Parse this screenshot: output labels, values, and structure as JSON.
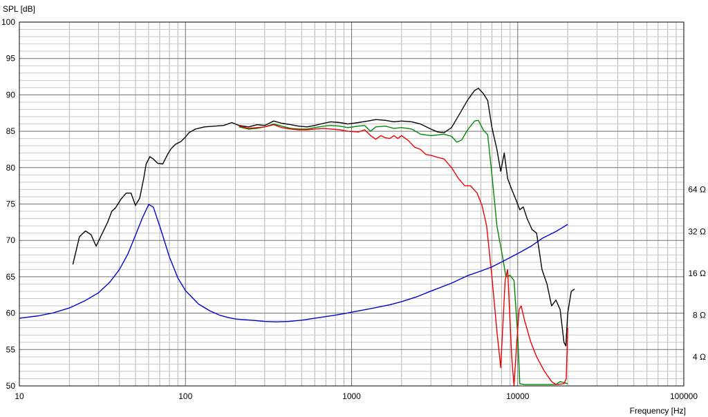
{
  "chart_data": {
    "type": "line",
    "ylabel": "SPL [dB]",
    "xlabel": "Frequency [Hz]",
    "x_scale": "log",
    "xlim": [
      10,
      100000
    ],
    "ylim": [
      50,
      100
    ],
    "grid": true,
    "x_ticks": [
      10,
      100,
      1000,
      10000,
      100000
    ],
    "x_tick_labels": [
      "10",
      "100",
      "1000",
      "10000",
      "100000"
    ],
    "y_ticks": [
      50,
      55,
      60,
      65,
      70,
      75,
      80,
      85,
      90,
      95,
      100
    ],
    "y2_scale": "log",
    "y2_unit": "Ω",
    "y2_ticks": [
      4,
      8,
      16,
      32,
      64
    ],
    "y2_tick_labels": [
      "4 Ω",
      "8 Ω",
      "16 Ω",
      "32 Ω",
      "64 Ω"
    ],
    "series": [
      {
        "color": "#000000",
        "axis": "left",
        "points": [
          [
            21,
            66.7
          ],
          [
            23,
            70.5
          ],
          [
            25,
            71.3
          ],
          [
            27,
            70.8
          ],
          [
            29,
            69.2
          ],
          [
            31,
            70.6
          ],
          [
            34,
            72.5
          ],
          [
            36,
            74.0
          ],
          [
            38,
            74.5
          ],
          [
            41,
            75.7
          ],
          [
            44,
            76.5
          ],
          [
            47,
            76.5
          ],
          [
            50,
            74.8
          ],
          [
            53,
            75.8
          ],
          [
            56,
            78.5
          ],
          [
            58,
            80.5
          ],
          [
            61,
            81.5
          ],
          [
            64,
            81.2
          ],
          [
            68,
            80.6
          ],
          [
            73,
            80.5
          ],
          [
            78,
            81.8
          ],
          [
            82,
            82.6
          ],
          [
            87,
            83.2
          ],
          [
            94,
            83.6
          ],
          [
            100,
            84.2
          ],
          [
            105,
            84.8
          ],
          [
            115,
            85.3
          ],
          [
            130,
            85.6
          ],
          [
            150,
            85.7
          ],
          [
            170,
            85.8
          ],
          [
            190,
            86.2
          ],
          [
            210,
            85.8
          ],
          [
            240,
            85.6
          ],
          [
            270,
            85.9
          ],
          [
            300,
            85.8
          ],
          [
            340,
            86.4
          ],
          [
            380,
            86.1
          ],
          [
            430,
            85.9
          ],
          [
            480,
            85.7
          ],
          [
            540,
            85.6
          ],
          [
            600,
            85.8
          ],
          [
            680,
            86.1
          ],
          [
            750,
            86.3
          ],
          [
            850,
            86.2
          ],
          [
            950,
            86.0
          ],
          [
            1100,
            86.2
          ],
          [
            1250,
            86.4
          ],
          [
            1400,
            86.6
          ],
          [
            1600,
            86.5
          ],
          [
            1800,
            86.3
          ],
          [
            2000,
            86.4
          ],
          [
            2300,
            86.3
          ],
          [
            2600,
            86.0
          ],
          [
            3000,
            85.3
          ],
          [
            3300,
            84.9
          ],
          [
            3600,
            84.8
          ],
          [
            4000,
            85.5
          ],
          [
            4500,
            87.5
          ],
          [
            5000,
            89.3
          ],
          [
            5500,
            90.6
          ],
          [
            5800,
            90.9
          ],
          [
            6200,
            90.2
          ],
          [
            6600,
            89.2
          ],
          [
            7000,
            85.5
          ],
          [
            7500,
            82.5
          ],
          [
            7900,
            79.5
          ],
          [
            8300,
            82.0
          ],
          [
            8700,
            78.5
          ],
          [
            9200,
            77.0
          ],
          [
            9800,
            75.5
          ],
          [
            10300,
            74.2
          ],
          [
            10800,
            74.6
          ],
          [
            11400,
            73.0
          ],
          [
            12200,
            71.5
          ],
          [
            13000,
            71.0
          ],
          [
            14000,
            66.0
          ],
          [
            15000,
            64.0
          ],
          [
            16000,
            61.0
          ],
          [
            17000,
            61.8
          ],
          [
            18000,
            60.5
          ],
          [
            19000,
            56.0
          ],
          [
            19500,
            55.5
          ],
          [
            20000,
            60.0
          ],
          [
            21000,
            63.0
          ],
          [
            22000,
            63.3
          ]
        ]
      },
      {
        "color": "#008800",
        "axis": "left",
        "points": [
          [
            210,
            85.6
          ],
          [
            240,
            85.3
          ],
          [
            270,
            85.4
          ],
          [
            300,
            85.6
          ],
          [
            340,
            86.0
          ],
          [
            380,
            85.7
          ],
          [
            430,
            85.4
          ],
          [
            480,
            85.3
          ],
          [
            540,
            85.3
          ],
          [
            600,
            85.5
          ],
          [
            680,
            85.7
          ],
          [
            750,
            85.8
          ],
          [
            850,
            85.7
          ],
          [
            950,
            85.5
          ],
          [
            1100,
            85.7
          ],
          [
            1200,
            85.8
          ],
          [
            1300,
            85.0
          ],
          [
            1400,
            85.6
          ],
          [
            1600,
            85.7
          ],
          [
            1800,
            85.4
          ],
          [
            2000,
            85.5
          ],
          [
            2300,
            85.3
          ],
          [
            2600,
            84.6
          ],
          [
            3000,
            84.4
          ],
          [
            3300,
            84.5
          ],
          [
            3600,
            84.6
          ],
          [
            4000,
            84.3
          ],
          [
            4300,
            83.5
          ],
          [
            4600,
            83.8
          ],
          [
            5000,
            85.2
          ],
          [
            5500,
            86.4
          ],
          [
            5800,
            86.5
          ],
          [
            6200,
            85.2
          ],
          [
            6600,
            84.5
          ],
          [
            7000,
            79.0
          ],
          [
            7500,
            72.0
          ],
          [
            8000,
            68.5
          ],
          [
            8500,
            65.0
          ],
          [
            9000,
            65.2
          ],
          [
            9500,
            64.5
          ],
          [
            10000,
            57.0
          ],
          [
            10300,
            50.3
          ],
          [
            11000,
            50.2
          ],
          [
            13000,
            50.2
          ],
          [
            17000,
            50.2
          ],
          [
            18000,
            50.6
          ],
          [
            20000,
            50.3
          ]
        ]
      },
      {
        "color": "#ee0000",
        "axis": "left",
        "points": [
          [
            210,
            85.7
          ],
          [
            240,
            85.4
          ],
          [
            270,
            85.5
          ],
          [
            300,
            85.6
          ],
          [
            340,
            85.9
          ],
          [
            380,
            85.5
          ],
          [
            430,
            85.3
          ],
          [
            480,
            85.2
          ],
          [
            540,
            85.2
          ],
          [
            600,
            85.3
          ],
          [
            680,
            85.4
          ],
          [
            750,
            85.3
          ],
          [
            850,
            85.2
          ],
          [
            950,
            85.0
          ],
          [
            1100,
            84.9
          ],
          [
            1200,
            85.2
          ],
          [
            1300,
            84.4
          ],
          [
            1400,
            83.9
          ],
          [
            1500,
            84.4
          ],
          [
            1600,
            84.1
          ],
          [
            1700,
            84.0
          ],
          [
            1800,
            84.4
          ],
          [
            1900,
            84.0
          ],
          [
            2000,
            84.4
          ],
          [
            2200,
            83.7
          ],
          [
            2400,
            82.8
          ],
          [
            2600,
            82.5
          ],
          [
            2800,
            81.8
          ],
          [
            3000,
            81.7
          ],
          [
            3300,
            81.4
          ],
          [
            3600,
            81.2
          ],
          [
            4000,
            80.0
          ],
          [
            4400,
            78.5
          ],
          [
            4800,
            77.5
          ],
          [
            5200,
            77.5
          ],
          [
            5700,
            76.5
          ],
          [
            6100,
            74.8
          ],
          [
            6500,
            72.0
          ],
          [
            7000,
            65.0
          ],
          [
            7500,
            57.5
          ],
          [
            7900,
            52.5
          ],
          [
            8400,
            64.5
          ],
          [
            8700,
            66.0
          ],
          [
            9200,
            54.0
          ],
          [
            9500,
            50.0
          ],
          [
            9800,
            54.8
          ],
          [
            10200,
            60.5
          ],
          [
            10500,
            61.0
          ],
          [
            11000,
            59.0
          ],
          [
            12000,
            56.0
          ],
          [
            13000,
            54.0
          ],
          [
            14500,
            52.0
          ],
          [
            16000,
            50.6
          ],
          [
            17000,
            50.2
          ],
          [
            19000,
            50.3
          ],
          [
            19600,
            51.0
          ],
          [
            20000,
            58.0
          ]
        ]
      },
      {
        "color": "#0000cc",
        "axis": "right",
        "points": [
          [
            10,
            7.6
          ],
          [
            13,
            7.9
          ],
          [
            16,
            8.3
          ],
          [
            20,
            9.0
          ],
          [
            25,
            10.2
          ],
          [
            30,
            11.6
          ],
          [
            35,
            13.8
          ],
          [
            40,
            17.0
          ],
          [
            45,
            22.0
          ],
          [
            50,
            30.0
          ],
          [
            55,
            40.0
          ],
          [
            60,
            50.0
          ],
          [
            64,
            48.0
          ],
          [
            70,
            35.0
          ],
          [
            80,
            21.0
          ],
          [
            90,
            14.8
          ],
          [
            100,
            12.0
          ],
          [
            120,
            9.6
          ],
          [
            140,
            8.6
          ],
          [
            160,
            8.0
          ],
          [
            180,
            7.7
          ],
          [
            200,
            7.5
          ],
          [
            250,
            7.35
          ],
          [
            300,
            7.2
          ],
          [
            350,
            7.15
          ],
          [
            420,
            7.2
          ],
          [
            500,
            7.35
          ],
          [
            600,
            7.6
          ],
          [
            700,
            7.8
          ],
          [
            800,
            8.0
          ],
          [
            900,
            8.2
          ],
          [
            1000,
            8.4
          ],
          [
            1300,
            8.9
          ],
          [
            1700,
            9.5
          ],
          [
            2000,
            10.0
          ],
          [
            2500,
            10.9
          ],
          [
            3000,
            11.9
          ],
          [
            4000,
            13.6
          ],
          [
            5000,
            15.4
          ],
          [
            6000,
            16.6
          ],
          [
            7000,
            17.8
          ],
          [
            8000,
            19.3
          ],
          [
            10000,
            22.2
          ],
          [
            12000,
            25.0
          ],
          [
            14000,
            28.5
          ],
          [
            17000,
            32.0
          ],
          [
            20000,
            36.0
          ]
        ]
      }
    ]
  }
}
